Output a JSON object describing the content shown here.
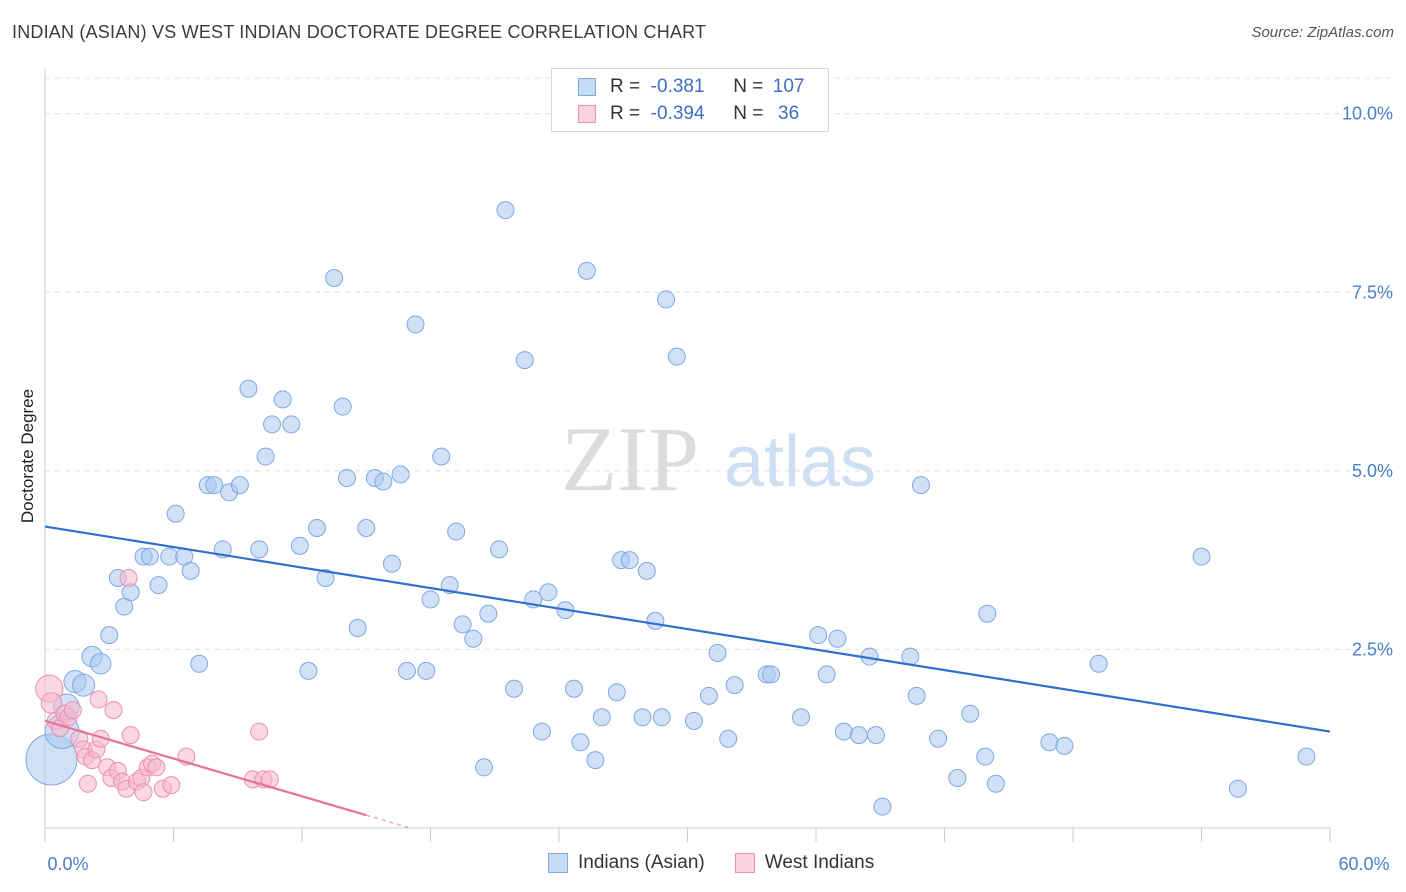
{
  "header": {
    "title": "INDIAN (ASIAN) VS WEST INDIAN DOCTORATE DEGREE CORRELATION CHART",
    "source": "Source: ZipAtlas.com"
  },
  "watermark": {
    "zip": "ZIP",
    "atlas": "atlas"
  },
  "legend": {
    "rows": [
      {
        "r_label": "R =",
        "r_value": "-0.381",
        "n_label": "N =",
        "n_value": "107",
        "color": "#a9c8f0"
      },
      {
        "r_label": "R =",
        "r_value": "-0.394",
        "n_label": "N =",
        "n_value": "36",
        "color": "#f6b8cc"
      }
    ]
  },
  "bottom_legend": [
    {
      "label": "Indians (Asian)",
      "color": "#a9c8f0"
    },
    {
      "label": "West Indians",
      "color": "#f6b8cc"
    }
  ],
  "chart_data": {
    "type": "scatter",
    "title": "INDIAN (ASIAN) VS WEST INDIAN DOCTORATE DEGREE CORRELATION CHART",
    "xlabel": "",
    "ylabel": "Doctorate Degree",
    "xlim": [
      0,
      60
    ],
    "ylim": [
      0,
      10.5
    ],
    "x_tick_labels": [
      "0.0%",
      "60.0%"
    ],
    "y_ticks": [
      2.5,
      5.0,
      7.5,
      10.0
    ],
    "y_tick_labels": [
      "2.5%",
      "5.0%",
      "7.5%",
      "10.0%"
    ],
    "grid": true,
    "series": [
      {
        "name": "Indians (Asian)",
        "color": "#a9c8f0",
        "stroke": "#7ea8e0",
        "trend": {
          "x": [
            0,
            60
          ],
          "y": [
            4.22,
            1.35
          ],
          "color": "#2f6fd0"
        },
        "points": [
          {
            "x": 0.3,
            "y": 0.96,
            "s": 3
          },
          {
            "x": 0.8,
            "y": 1.35,
            "s": 2
          },
          {
            "x": 1.0,
            "y": 1.7,
            "s": 1.5
          },
          {
            "x": 1.4,
            "y": 2.05,
            "s": 1.3
          },
          {
            "x": 1.8,
            "y": 2.0,
            "s": 1.3
          },
          {
            "x": 2.2,
            "y": 2.4,
            "s": 1.2
          },
          {
            "x": 2.6,
            "y": 2.3,
            "s": 1.2
          },
          {
            "x": 3.0,
            "y": 2.7,
            "s": 1
          },
          {
            "x": 3.4,
            "y": 3.5,
            "s": 1
          },
          {
            "x": 3.7,
            "y": 3.1,
            "s": 1
          },
          {
            "x": 4.0,
            "y": 3.3,
            "s": 1
          },
          {
            "x": 4.6,
            "y": 3.8,
            "s": 1
          },
          {
            "x": 4.9,
            "y": 3.8,
            "s": 1
          },
          {
            "x": 5.3,
            "y": 3.4,
            "s": 1
          },
          {
            "x": 5.8,
            "y": 3.8,
            "s": 1
          },
          {
            "x": 6.1,
            "y": 4.4,
            "s": 1
          },
          {
            "x": 6.5,
            "y": 3.8,
            "s": 1
          },
          {
            "x": 6.8,
            "y": 3.6,
            "s": 1
          },
          {
            "x": 7.2,
            "y": 2.3,
            "s": 1
          },
          {
            "x": 7.6,
            "y": 4.8,
            "s": 1
          },
          {
            "x": 7.9,
            "y": 4.8,
            "s": 1
          },
          {
            "x": 8.3,
            "y": 3.9,
            "s": 1
          },
          {
            "x": 8.6,
            "y": 4.7,
            "s": 1
          },
          {
            "x": 9.1,
            "y": 4.8,
            "s": 1
          },
          {
            "x": 9.5,
            "y": 6.15,
            "s": 1
          },
          {
            "x": 10.0,
            "y": 3.9,
            "s": 1
          },
          {
            "x": 10.3,
            "y": 5.2,
            "s": 1
          },
          {
            "x": 10.6,
            "y": 5.65,
            "s": 1
          },
          {
            "x": 11.1,
            "y": 6.0,
            "s": 1
          },
          {
            "x": 11.5,
            "y": 5.65,
            "s": 1
          },
          {
            "x": 11.9,
            "y": 3.95,
            "s": 1
          },
          {
            "x": 12.3,
            "y": 2.2,
            "s": 1
          },
          {
            "x": 12.7,
            "y": 4.2,
            "s": 1
          },
          {
            "x": 13.1,
            "y": 3.5,
            "s": 1
          },
          {
            "x": 13.5,
            "y": 7.7,
            "s": 1
          },
          {
            "x": 13.9,
            "y": 5.9,
            "s": 1
          },
          {
            "x": 14.1,
            "y": 4.9,
            "s": 1
          },
          {
            "x": 14.6,
            "y": 2.8,
            "s": 1
          },
          {
            "x": 15.0,
            "y": 4.2,
            "s": 1
          },
          {
            "x": 15.4,
            "y": 4.9,
            "s": 1
          },
          {
            "x": 15.8,
            "y": 4.85,
            "s": 1
          },
          {
            "x": 16.2,
            "y": 3.7,
            "s": 1
          },
          {
            "x": 16.6,
            "y": 4.95,
            "s": 1
          },
          {
            "x": 16.9,
            "y": 2.2,
            "s": 1
          },
          {
            "x": 17.3,
            "y": 7.05,
            "s": 1
          },
          {
            "x": 17.8,
            "y": 2.2,
            "s": 1
          },
          {
            "x": 18.0,
            "y": 3.2,
            "s": 1
          },
          {
            "x": 18.5,
            "y": 5.2,
            "s": 1
          },
          {
            "x": 18.9,
            "y": 3.4,
            "s": 1
          },
          {
            "x": 19.2,
            "y": 4.15,
            "s": 1
          },
          {
            "x": 19.5,
            "y": 2.85,
            "s": 1
          },
          {
            "x": 20.0,
            "y": 2.65,
            "s": 1
          },
          {
            "x": 20.5,
            "y": 0.85,
            "s": 1
          },
          {
            "x": 20.7,
            "y": 3.0,
            "s": 1
          },
          {
            "x": 21.2,
            "y": 3.9,
            "s": 1
          },
          {
            "x": 21.5,
            "y": 8.65,
            "s": 1
          },
          {
            "x": 21.9,
            "y": 1.95,
            "s": 1
          },
          {
            "x": 22.4,
            "y": 6.55,
            "s": 1
          },
          {
            "x": 22.8,
            "y": 3.2,
            "s": 1
          },
          {
            "x": 23.2,
            "y": 1.35,
            "s": 1
          },
          {
            "x": 23.5,
            "y": 3.3,
            "s": 1
          },
          {
            "x": 24.3,
            "y": 3.05,
            "s": 1
          },
          {
            "x": 24.7,
            "y": 1.95,
            "s": 1
          },
          {
            "x": 25.0,
            "y": 1.2,
            "s": 1
          },
          {
            "x": 25.3,
            "y": 7.8,
            "s": 1
          },
          {
            "x": 25.7,
            "y": 0.95,
            "s": 1
          },
          {
            "x": 26.0,
            "y": 1.55,
            "s": 1
          },
          {
            "x": 26.7,
            "y": 1.9,
            "s": 1
          },
          {
            "x": 26.9,
            "y": 3.75,
            "s": 1
          },
          {
            "x": 27.3,
            "y": 3.75,
            "s": 1
          },
          {
            "x": 27.9,
            "y": 1.55,
            "s": 1
          },
          {
            "x": 28.1,
            "y": 3.6,
            "s": 1
          },
          {
            "x": 28.5,
            "y": 2.9,
            "s": 1
          },
          {
            "x": 28.8,
            "y": 1.55,
            "s": 1
          },
          {
            "x": 29.0,
            "y": 7.4,
            "s": 1
          },
          {
            "x": 29.5,
            "y": 6.6,
            "s": 1
          },
          {
            "x": 30.3,
            "y": 1.5,
            "s": 1
          },
          {
            "x": 31.0,
            "y": 1.85,
            "s": 1
          },
          {
            "x": 31.4,
            "y": 2.45,
            "s": 1
          },
          {
            "x": 31.9,
            "y": 1.25,
            "s": 1
          },
          {
            "x": 32.2,
            "y": 2.0,
            "s": 1
          },
          {
            "x": 33.7,
            "y": 2.15,
            "s": 1
          },
          {
            "x": 33.9,
            "y": 2.15,
            "s": 1
          },
          {
            "x": 35.3,
            "y": 1.55,
            "s": 1
          },
          {
            "x": 36.1,
            "y": 2.7,
            "s": 1
          },
          {
            "x": 36.5,
            "y": 2.15,
            "s": 1
          },
          {
            "x": 37.0,
            "y": 2.65,
            "s": 1
          },
          {
            "x": 37.3,
            "y": 1.35,
            "s": 1
          },
          {
            "x": 38.0,
            "y": 1.3,
            "s": 1
          },
          {
            "x": 38.5,
            "y": 2.4,
            "s": 1
          },
          {
            "x": 38.8,
            "y": 1.3,
            "s": 1
          },
          {
            "x": 39.1,
            "y": 0.3,
            "s": 1
          },
          {
            "x": 40.4,
            "y": 2.4,
            "s": 1
          },
          {
            "x": 40.7,
            "y": 1.85,
            "s": 1
          },
          {
            "x": 40.9,
            "y": 4.8,
            "s": 1
          },
          {
            "x": 41.7,
            "y": 1.25,
            "s": 1
          },
          {
            "x": 42.6,
            "y": 0.7,
            "s": 1
          },
          {
            "x": 43.2,
            "y": 1.6,
            "s": 1
          },
          {
            "x": 43.9,
            "y": 1.0,
            "s": 1
          },
          {
            "x": 44.0,
            "y": 3.0,
            "s": 1
          },
          {
            "x": 44.4,
            "y": 0.62,
            "s": 1
          },
          {
            "x": 46.9,
            "y": 1.2,
            "s": 1
          },
          {
            "x": 47.6,
            "y": 1.15,
            "s": 1
          },
          {
            "x": 49.2,
            "y": 2.3,
            "s": 1
          },
          {
            "x": 54.0,
            "y": 3.8,
            "s": 1
          },
          {
            "x": 55.7,
            "y": 0.55,
            "s": 1
          },
          {
            "x": 58.9,
            "y": 1.0,
            "s": 1
          }
        ]
      },
      {
        "name": "West Indians",
        "color": "#f6b8cc",
        "stroke": "#ec8fb0",
        "trend": {
          "x": [
            0,
            15
          ],
          "y": [
            1.5,
            0.18
          ],
          "dashed_to_x": 17,
          "color": "#e4729c"
        },
        "points": [
          {
            "x": 0.2,
            "y": 1.95,
            "s": 1.6
          },
          {
            "x": 0.3,
            "y": 1.75,
            "s": 1.2
          },
          {
            "x": 0.5,
            "y": 1.5,
            "s": 1
          },
          {
            "x": 0.7,
            "y": 1.4,
            "s": 1
          },
          {
            "x": 0.9,
            "y": 1.6,
            "s": 1
          },
          {
            "x": 1.1,
            "y": 1.55,
            "s": 1
          },
          {
            "x": 1.3,
            "y": 1.65,
            "s": 1
          },
          {
            "x": 1.6,
            "y": 1.25,
            "s": 1
          },
          {
            "x": 1.8,
            "y": 1.1,
            "s": 1
          },
          {
            "x": 1.9,
            "y": 1.0,
            "s": 1
          },
          {
            "x": 2.0,
            "y": 0.62,
            "s": 1
          },
          {
            "x": 2.2,
            "y": 0.95,
            "s": 1
          },
          {
            "x": 2.4,
            "y": 1.1,
            "s": 1
          },
          {
            "x": 2.5,
            "y": 1.8,
            "s": 1
          },
          {
            "x": 2.6,
            "y": 1.25,
            "s": 1
          },
          {
            "x": 2.9,
            "y": 0.85,
            "s": 1
          },
          {
            "x": 3.1,
            "y": 0.7,
            "s": 1
          },
          {
            "x": 3.2,
            "y": 1.65,
            "s": 1
          },
          {
            "x": 3.4,
            "y": 0.8,
            "s": 1
          },
          {
            "x": 3.6,
            "y": 0.65,
            "s": 1
          },
          {
            "x": 3.8,
            "y": 0.55,
            "s": 1
          },
          {
            "x": 3.9,
            "y": 3.5,
            "s": 1
          },
          {
            "x": 4.0,
            "y": 1.3,
            "s": 1
          },
          {
            "x": 4.3,
            "y": 0.65,
            "s": 1
          },
          {
            "x": 4.5,
            "y": 0.7,
            "s": 1
          },
          {
            "x": 4.6,
            "y": 0.5,
            "s": 1
          },
          {
            "x": 4.8,
            "y": 0.85,
            "s": 1
          },
          {
            "x": 5.0,
            "y": 0.9,
            "s": 1
          },
          {
            "x": 5.2,
            "y": 0.85,
            "s": 1
          },
          {
            "x": 5.5,
            "y": 0.55,
            "s": 1
          },
          {
            "x": 5.9,
            "y": 0.6,
            "s": 1
          },
          {
            "x": 6.6,
            "y": 1.0,
            "s": 1
          },
          {
            "x": 9.7,
            "y": 0.68,
            "s": 1
          },
          {
            "x": 10.0,
            "y": 1.35,
            "s": 1
          },
          {
            "x": 10.2,
            "y": 0.68,
            "s": 1
          },
          {
            "x": 10.5,
            "y": 0.68,
            "s": 1
          }
        ]
      }
    ]
  }
}
